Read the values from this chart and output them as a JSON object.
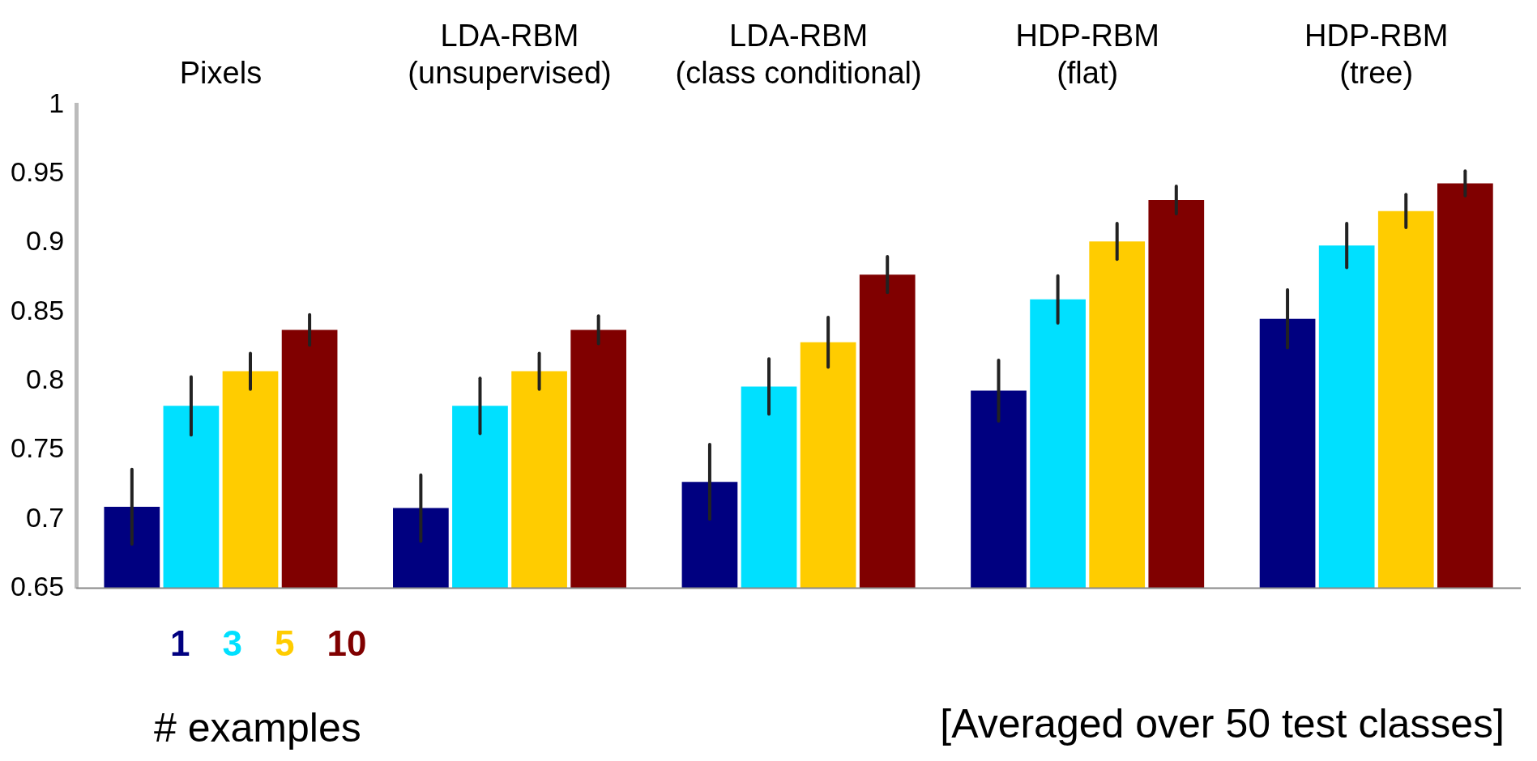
{
  "chart_data": {
    "type": "bar",
    "categories": [
      "Pixels",
      "LDA-RBM (unsupervised)",
      "LDA-RBM (class conditional)",
      "HDP-RBM (flat)",
      "HDP-RBM (tree)"
    ],
    "series": [
      {
        "name": "1",
        "color": "#000080",
        "values": [
          0.709,
          0.708,
          0.727,
          0.793,
          0.845
        ],
        "errors": [
          0.027,
          0.024,
          0.027,
          0.022,
          0.021
        ]
      },
      {
        "name": "3",
        "color": "#00e0ff",
        "values": [
          0.782,
          0.782,
          0.796,
          0.859,
          0.898
        ],
        "errors": [
          0.021,
          0.02,
          0.02,
          0.017,
          0.016
        ]
      },
      {
        "name": "5",
        "color": "#ffcc00",
        "values": [
          0.807,
          0.807,
          0.828,
          0.901,
          0.923
        ],
        "errors": [
          0.013,
          0.013,
          0.018,
          0.013,
          0.012
        ]
      },
      {
        "name": "10",
        "color": "#800000",
        "values": [
          0.837,
          0.837,
          0.877,
          0.931,
          0.943
        ],
        "errors": [
          0.011,
          0.01,
          0.013,
          0.01,
          0.009
        ]
      }
    ],
    "ylim": [
      0.65,
      1
    ],
    "yticks": [
      0.65,
      0.7,
      0.75,
      0.8,
      0.85,
      0.9,
      0.95,
      1
    ],
    "grid": false,
    "legend": "bottom left",
    "legend_title": "# examples",
    "annotations": [
      "[Averaged over 50 test classes]"
    ]
  }
}
